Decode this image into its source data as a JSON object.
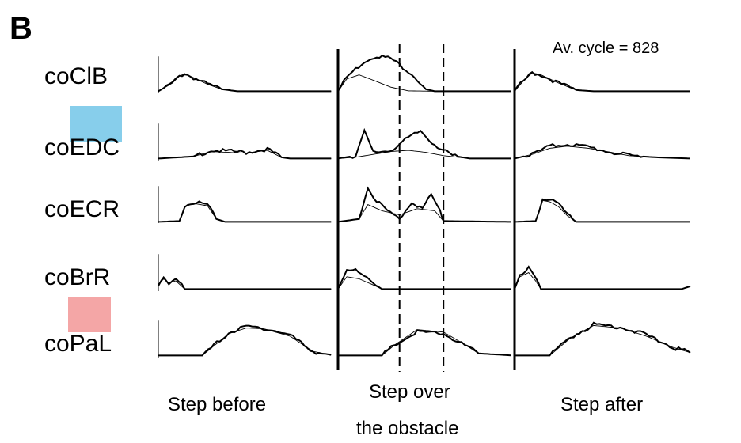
{
  "panel_label": "B",
  "cycle_text": "Av. cycle = 828",
  "colors": {
    "blue_swatch": "#87ceeb",
    "pink_swatch": "#f4a6a6",
    "trace": "#000000"
  },
  "phases": {
    "before": "Step before",
    "over_line1": "Step over",
    "over_line2": "the obstacle",
    "after": "Step after"
  },
  "chart_data": {
    "type": "line",
    "title": "",
    "xlabel": "",
    "ylabel": "",
    "x_domain": [
      0,
      3
    ],
    "phases": [
      "Step before",
      "Step over the obstacle",
      "Step after"
    ],
    "phase_boundaries": [
      1.0,
      2.0
    ],
    "dashed_markers": [
      1.35,
      1.6
    ],
    "legend": "none",
    "grid": false,
    "series": [
      {
        "name": "coClB",
        "thick": [
          [
            0,
            0.05
          ],
          [
            0.08,
            0.25
          ],
          [
            0.12,
            0.42
          ],
          [
            0.15,
            0.48
          ],
          [
            0.2,
            0.38
          ],
          [
            0.28,
            0.22
          ],
          [
            0.36,
            0.1
          ],
          [
            0.45,
            0.05
          ],
          [
            1.0,
            0.05
          ],
          [
            1.05,
            0.4
          ],
          [
            1.15,
            0.78
          ],
          [
            1.22,
            0.92
          ],
          [
            1.3,
            0.85
          ],
          [
            1.42,
            0.48
          ],
          [
            1.5,
            0.1
          ],
          [
            1.55,
            0.05
          ],
          [
            2.0,
            0.05
          ],
          [
            2.05,
            0.3
          ],
          [
            2.1,
            0.5
          ],
          [
            2.15,
            0.45
          ],
          [
            2.25,
            0.25
          ],
          [
            2.35,
            0.08
          ],
          [
            2.45,
            0.05
          ],
          [
            3.0,
            0.05
          ]
        ],
        "thin": [
          [
            0,
            0.05
          ],
          [
            0.08,
            0.25
          ],
          [
            0.12,
            0.42
          ],
          [
            0.15,
            0.48
          ],
          [
            0.2,
            0.38
          ],
          [
            0.28,
            0.22
          ],
          [
            0.36,
            0.1
          ],
          [
            0.45,
            0.05
          ],
          [
            1.0,
            0.05
          ],
          [
            1.05,
            0.35
          ],
          [
            1.12,
            0.45
          ],
          [
            1.2,
            0.32
          ],
          [
            1.3,
            0.15
          ],
          [
            1.4,
            0.06
          ],
          [
            1.55,
            0.05
          ],
          [
            2.0,
            0.05
          ],
          [
            2.05,
            0.3
          ],
          [
            2.1,
            0.5
          ],
          [
            2.15,
            0.45
          ],
          [
            2.25,
            0.25
          ],
          [
            2.35,
            0.08
          ],
          [
            2.45,
            0.05
          ],
          [
            3.0,
            0.05
          ]
        ]
      },
      {
        "name": "coEDC",
        "thick": [
          [
            0,
            0.05
          ],
          [
            0.2,
            0.1
          ],
          [
            0.3,
            0.25
          ],
          [
            0.5,
            0.2
          ],
          [
            0.62,
            0.28
          ],
          [
            0.7,
            0.08
          ],
          [
            0.75,
            0.05
          ],
          [
            1.0,
            0.05
          ],
          [
            1.1,
            0.12
          ],
          [
            1.15,
            0.7
          ],
          [
            1.2,
            0.2
          ],
          [
            1.3,
            0.25
          ],
          [
            1.4,
            0.55
          ],
          [
            1.47,
            0.72
          ],
          [
            1.52,
            0.5
          ],
          [
            1.58,
            0.3
          ],
          [
            1.65,
            0.12
          ],
          [
            1.75,
            0.05
          ],
          [
            2.0,
            0.05
          ],
          [
            2.1,
            0.15
          ],
          [
            2.2,
            0.35
          ],
          [
            2.3,
            0.4
          ],
          [
            2.42,
            0.33
          ],
          [
            2.55,
            0.2
          ],
          [
            2.65,
            0.12
          ],
          [
            2.8,
            0.08
          ],
          [
            3.0,
            0.05
          ]
        ],
        "thin": [
          [
            0,
            0.05
          ],
          [
            0.2,
            0.1
          ],
          [
            0.3,
            0.22
          ],
          [
            0.5,
            0.18
          ],
          [
            0.62,
            0.25
          ],
          [
            0.7,
            0.08
          ],
          [
            0.75,
            0.05
          ],
          [
            1.0,
            0.05
          ],
          [
            1.1,
            0.08
          ],
          [
            1.2,
            0.15
          ],
          [
            1.3,
            0.22
          ],
          [
            1.4,
            0.25
          ],
          [
            1.5,
            0.2
          ],
          [
            1.6,
            0.12
          ],
          [
            1.75,
            0.05
          ],
          [
            2.0,
            0.05
          ],
          [
            2.1,
            0.15
          ],
          [
            2.2,
            0.3
          ],
          [
            2.3,
            0.35
          ],
          [
            2.42,
            0.3
          ],
          [
            2.55,
            0.2
          ],
          [
            2.65,
            0.12
          ],
          [
            2.8,
            0.08
          ],
          [
            3.0,
            0.05
          ]
        ]
      },
      {
        "name": "coECR",
        "thick": [
          [
            0,
            0.03
          ],
          [
            0.12,
            0.05
          ],
          [
            0.15,
            0.42
          ],
          [
            0.2,
            0.5
          ],
          [
            0.28,
            0.45
          ],
          [
            0.33,
            0.1
          ],
          [
            0.38,
            0.03
          ],
          [
            1.0,
            0.03
          ],
          [
            1.12,
            0.1
          ],
          [
            1.17,
            0.85
          ],
          [
            1.22,
            0.55
          ],
          [
            1.28,
            0.3
          ],
          [
            1.35,
            0.1
          ],
          [
            1.42,
            0.52
          ],
          [
            1.48,
            0.35
          ],
          [
            1.53,
            0.68
          ],
          [
            1.58,
            0.3
          ],
          [
            1.6,
            0.05
          ],
          [
            2.0,
            0.03
          ],
          [
            2.12,
            0.05
          ],
          [
            2.16,
            0.6
          ],
          [
            2.2,
            0.58
          ],
          [
            2.25,
            0.45
          ],
          [
            2.3,
            0.2
          ],
          [
            2.35,
            0.03
          ],
          [
            3.0,
            0.03
          ]
        ],
        "thin": [
          [
            0,
            0.03
          ],
          [
            0.12,
            0.05
          ],
          [
            0.15,
            0.4
          ],
          [
            0.2,
            0.48
          ],
          [
            0.28,
            0.42
          ],
          [
            0.33,
            0.1
          ],
          [
            0.38,
            0.03
          ],
          [
            1.0,
            0.03
          ],
          [
            1.12,
            0.1
          ],
          [
            1.17,
            0.45
          ],
          [
            1.25,
            0.3
          ],
          [
            1.35,
            0.2
          ],
          [
            1.45,
            0.35
          ],
          [
            1.55,
            0.3
          ],
          [
            1.6,
            0.05
          ],
          [
            2.0,
            0.03
          ],
          [
            2.12,
            0.05
          ],
          [
            2.16,
            0.55
          ],
          [
            2.2,
            0.52
          ],
          [
            2.25,
            0.4
          ],
          [
            2.3,
            0.18
          ],
          [
            2.35,
            0.03
          ],
          [
            3.0,
            0.03
          ]
        ]
      },
      {
        "name": "coBrR",
        "thick": [
          [
            0,
            0.15
          ],
          [
            0.03,
            0.35
          ],
          [
            0.06,
            0.2
          ],
          [
            0.1,
            0.3
          ],
          [
            0.15,
            0.05
          ],
          [
            1.0,
            0.05
          ],
          [
            1.05,
            0.55
          ],
          [
            1.1,
            0.5
          ],
          [
            1.18,
            0.25
          ],
          [
            1.25,
            0.05
          ],
          [
            2.0,
            0.05
          ],
          [
            2.03,
            0.4
          ],
          [
            2.08,
            0.55
          ],
          [
            2.12,
            0.3
          ],
          [
            2.15,
            0.05
          ],
          [
            2.95,
            0.05
          ],
          [
            3.0,
            0.12
          ]
        ],
        "thin": [
          [
            0,
            0.15
          ],
          [
            0.03,
            0.3
          ],
          [
            0.06,
            0.2
          ],
          [
            0.1,
            0.25
          ],
          [
            0.15,
            0.05
          ],
          [
            1.0,
            0.05
          ],
          [
            1.05,
            0.35
          ],
          [
            1.12,
            0.3
          ],
          [
            1.2,
            0.15
          ],
          [
            1.25,
            0.05
          ],
          [
            2.0,
            0.05
          ],
          [
            2.03,
            0.35
          ],
          [
            2.08,
            0.45
          ],
          [
            2.12,
            0.25
          ],
          [
            2.15,
            0.05
          ],
          [
            2.95,
            0.05
          ],
          [
            3.0,
            0.12
          ]
        ]
      },
      {
        "name": "coPaL",
        "thick": [
          [
            0,
            0.05
          ],
          [
            0.25,
            0.05
          ],
          [
            0.4,
            0.6
          ],
          [
            0.5,
            0.75
          ],
          [
            0.6,
            0.72
          ],
          [
            0.75,
            0.55
          ],
          [
            0.88,
            0.15
          ],
          [
            1.0,
            0.05
          ],
          [
            1.25,
            0.05
          ],
          [
            1.32,
            0.3
          ],
          [
            1.45,
            0.62
          ],
          [
            1.6,
            0.58
          ],
          [
            1.72,
            0.3
          ],
          [
            1.8,
            0.1
          ],
          [
            2.0,
            0.05
          ],
          [
            2.2,
            0.05
          ],
          [
            2.32,
            0.5
          ],
          [
            2.45,
            0.8
          ],
          [
            2.6,
            0.75
          ],
          [
            2.75,
            0.55
          ],
          [
            2.9,
            0.25
          ],
          [
            3.0,
            0.12
          ]
        ],
        "thin": [
          [
            0,
            0.05
          ],
          [
            0.25,
            0.05
          ],
          [
            0.4,
            0.58
          ],
          [
            0.5,
            0.72
          ],
          [
            0.6,
            0.7
          ],
          [
            0.75,
            0.52
          ],
          [
            0.88,
            0.15
          ],
          [
            1.0,
            0.05
          ],
          [
            1.25,
            0.05
          ],
          [
            1.32,
            0.3
          ],
          [
            1.45,
            0.68
          ],
          [
            1.6,
            0.62
          ],
          [
            1.72,
            0.32
          ],
          [
            1.8,
            0.1
          ],
          [
            2.0,
            0.05
          ],
          [
            2.2,
            0.05
          ],
          [
            2.32,
            0.48
          ],
          [
            2.45,
            0.78
          ],
          [
            2.6,
            0.72
          ],
          [
            2.75,
            0.52
          ],
          [
            2.9,
            0.25
          ],
          [
            3.0,
            0.12
          ]
        ]
      }
    ]
  }
}
